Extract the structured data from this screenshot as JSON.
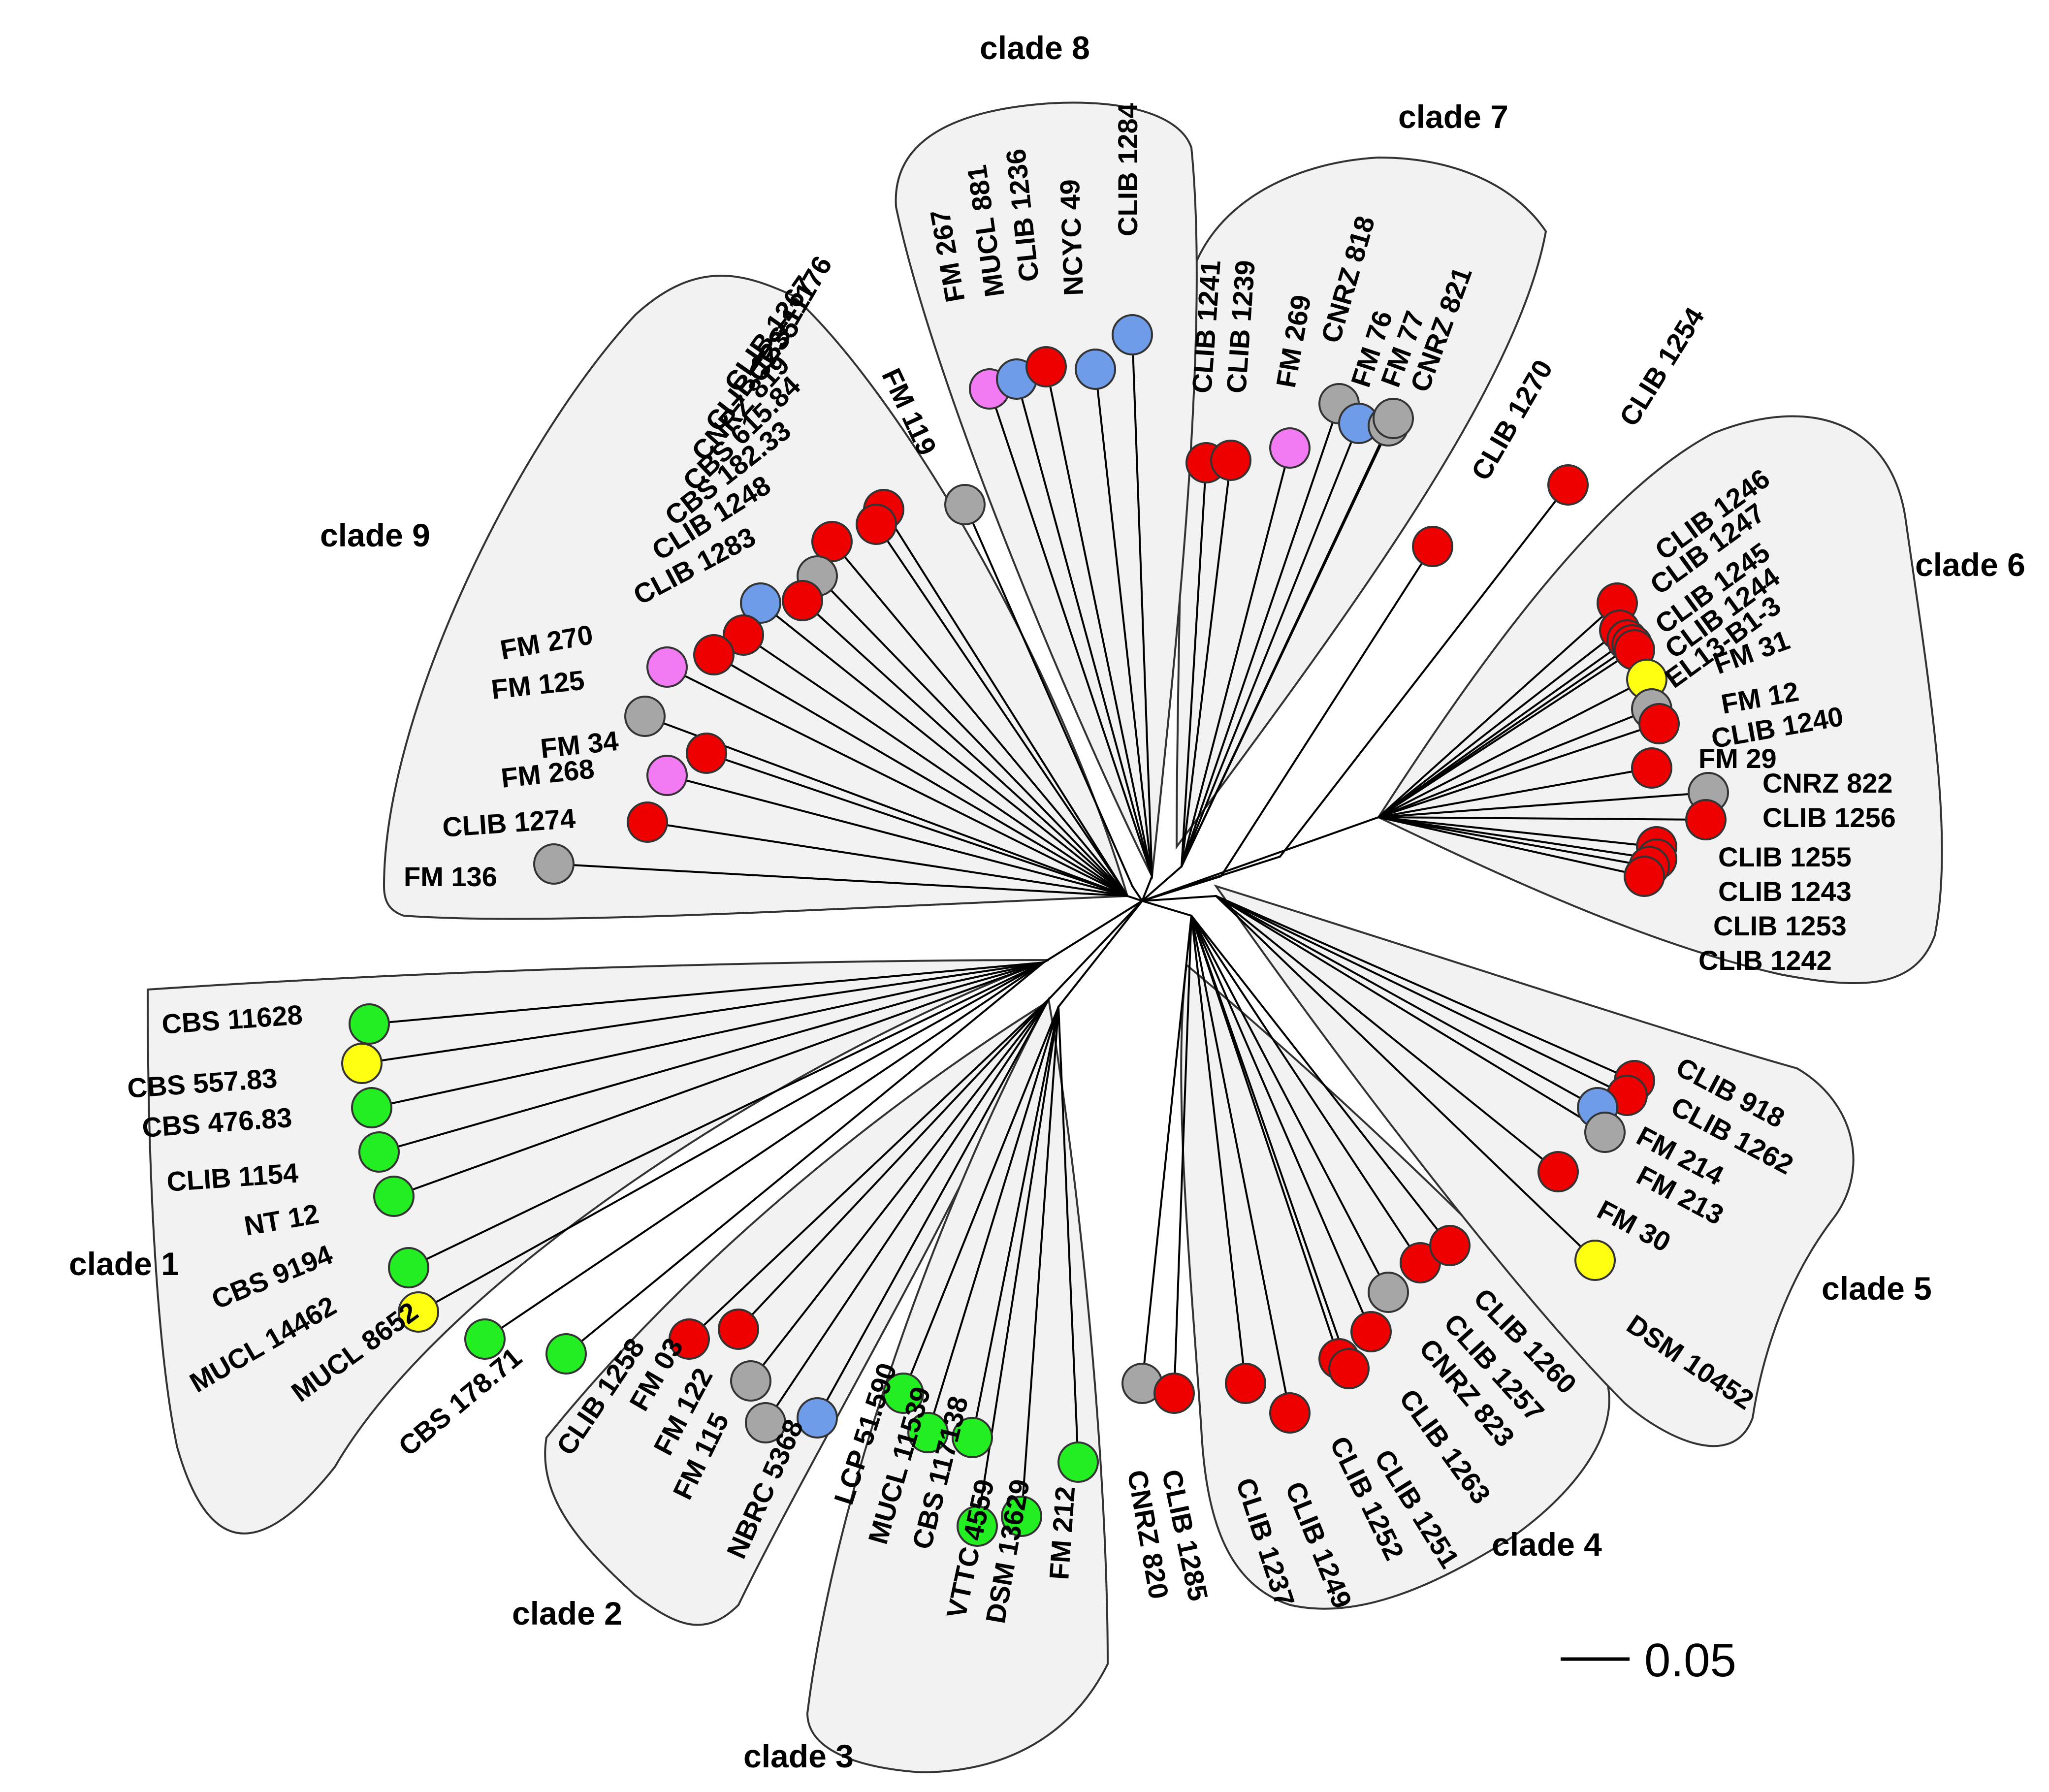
{
  "colors": {
    "red": "#ee0000",
    "grey": "#a6a6a6",
    "blue": "#6f9ce8",
    "green": "#22ee22",
    "yellow": "#ffff11",
    "pink": "#f27af2"
  },
  "scale_bar": {
    "label": "0.05"
  },
  "clades": [
    {
      "id": "1",
      "label": "clade 1",
      "taxa": [
        {
          "name": "CBS 11628",
          "color": "green"
        },
        {
          "name": "CBS 557.83",
          "color": "yellow"
        },
        {
          "name": "CBS 476.83",
          "color": "green"
        },
        {
          "name": "CLIB 1154",
          "color": "green"
        },
        {
          "name": "NT 12",
          "color": "green"
        },
        {
          "name": "CBS 9194",
          "color": "green"
        },
        {
          "name": "MUCL 14462",
          "color": "yellow"
        },
        {
          "name": "MUCL 8652",
          "color": "green"
        },
        {
          "name": "CBS 178.71",
          "color": "green"
        }
      ]
    },
    {
      "id": "2",
      "label": "clade 2",
      "taxa": [
        {
          "name": "CLIB 1258",
          "color": "red"
        },
        {
          "name": "FM 03",
          "color": "red"
        },
        {
          "name": "FM 122",
          "color": "grey"
        },
        {
          "name": "FM 115",
          "color": "grey"
        },
        {
          "name": "NBRC 5368",
          "color": "blue"
        }
      ]
    },
    {
      "id": "3",
      "label": "clade 3",
      "taxa": [
        {
          "name": "LCP 51.590",
          "color": "green"
        },
        {
          "name": "MUCL 11539",
          "color": "green"
        },
        {
          "name": "CBS 117138",
          "color": "green"
        },
        {
          "name": "VTTC 4559",
          "color": "green"
        },
        {
          "name": "DSM 13629",
          "color": "green"
        },
        {
          "name": "FM 212",
          "color": "green"
        }
      ]
    },
    {
      "id": "4",
      "label": "clade 4",
      "taxa": [
        {
          "name": "CNRZ 820",
          "color": "grey"
        },
        {
          "name": "CLIB 1285",
          "color": "red"
        },
        {
          "name": "CLIB 1237",
          "color": "red"
        },
        {
          "name": "CLIB 1249",
          "color": "red"
        },
        {
          "name": "CLIB 1252",
          "color": "red"
        },
        {
          "name": "CLIB 1251",
          "color": "red"
        },
        {
          "name": "CLIB 1263",
          "color": "red"
        },
        {
          "name": "CNRZ 823",
          "color": "grey"
        },
        {
          "name": "CLIB 1257",
          "color": "red"
        },
        {
          "name": "CLIB 1260",
          "color": "red"
        }
      ]
    },
    {
      "id": "5",
      "label": "clade 5",
      "taxa": [
        {
          "name": "CLIB 918",
          "color": "red"
        },
        {
          "name": "CLIB 1262",
          "color": "red"
        },
        {
          "name": "FM 214",
          "color": "blue"
        },
        {
          "name": "FM 213",
          "color": "grey"
        },
        {
          "name": "FM 30",
          "color": "red"
        },
        {
          "name": "DSM 10452",
          "color": "yellow"
        }
      ]
    },
    {
      "id": "6",
      "label": "clade 6",
      "taxa": [
        {
          "name": "CLIB 1246",
          "color": "red"
        },
        {
          "name": "CLIB 1247",
          "color": "red"
        },
        {
          "name": "CLIB 1245",
          "color": "red"
        },
        {
          "name": "CLIB 1244",
          "color": "red"
        },
        {
          "name": "EL13-B1-3",
          "color": "red"
        },
        {
          "name": "FM 31",
          "color": "yellow"
        },
        {
          "name": "FM 12",
          "color": "grey"
        },
        {
          "name": "CLIB 1240",
          "color": "red"
        },
        {
          "name": "FM 29",
          "color": "red"
        },
        {
          "name": "CNRZ 822",
          "color": "grey"
        },
        {
          "name": "CLIB 1256",
          "color": "red"
        },
        {
          "name": "CLIB 1255",
          "color": "red"
        },
        {
          "name": "CLIB 1243",
          "color": "red"
        },
        {
          "name": "CLIB 1253",
          "color": "red"
        },
        {
          "name": "CLIB 1242",
          "color": "red"
        }
      ]
    },
    {
      "id": "7",
      "label": "clade 7",
      "taxa": [
        {
          "name": "CLIB 1241",
          "color": "red"
        },
        {
          "name": "CLIB 1239",
          "color": "red"
        },
        {
          "name": "FM 269",
          "color": "pink"
        },
        {
          "name": "CNRZ 818",
          "color": "grey"
        },
        {
          "name": "FM 76",
          "color": "blue"
        },
        {
          "name": "FM 77",
          "color": "grey"
        },
        {
          "name": "CNRZ 821",
          "color": "grey"
        }
      ]
    },
    {
      "id": "8",
      "label": "clade 8",
      "taxa": [
        {
          "name": "FM 267",
          "color": "pink"
        },
        {
          "name": "MUCL 881",
          "color": "blue"
        },
        {
          "name": "CLIB 1236",
          "color": "red"
        },
        {
          "name": "NCYC 49",
          "color": "blue"
        },
        {
          "name": "CLIB 1284",
          "color": "blue"
        }
      ]
    },
    {
      "id": "9",
      "label": "clade 9",
      "taxa": [
        {
          "name": "CBS 11176",
          "color": "red"
        },
        {
          "name": "CLIB 1267",
          "color": "red"
        },
        {
          "name": "CLIB 1235",
          "color": "red"
        },
        {
          "name": "CNRZ 819",
          "color": "grey"
        },
        {
          "name": "CBS 615.84",
          "color": "red"
        },
        {
          "name": "CBS 182.33",
          "color": "blue"
        },
        {
          "name": "CLIB 1248",
          "color": "red"
        },
        {
          "name": "CLIB 1283",
          "color": "red"
        },
        {
          "name": "FM 270",
          "color": "pink"
        },
        {
          "name": "FM 125",
          "color": "grey"
        },
        {
          "name": "FM 34",
          "color": "red"
        },
        {
          "name": "FM 268",
          "color": "pink"
        },
        {
          "name": "CLIB 1274",
          "color": "red"
        },
        {
          "name": "FM 136",
          "color": "grey"
        }
      ]
    }
  ],
  "unclustered": [
    {
      "name": "FM 119",
      "color": "grey"
    },
    {
      "name": "CLIB 1270",
      "color": "red"
    },
    {
      "name": "CLIB 1254",
      "color": "red"
    }
  ]
}
